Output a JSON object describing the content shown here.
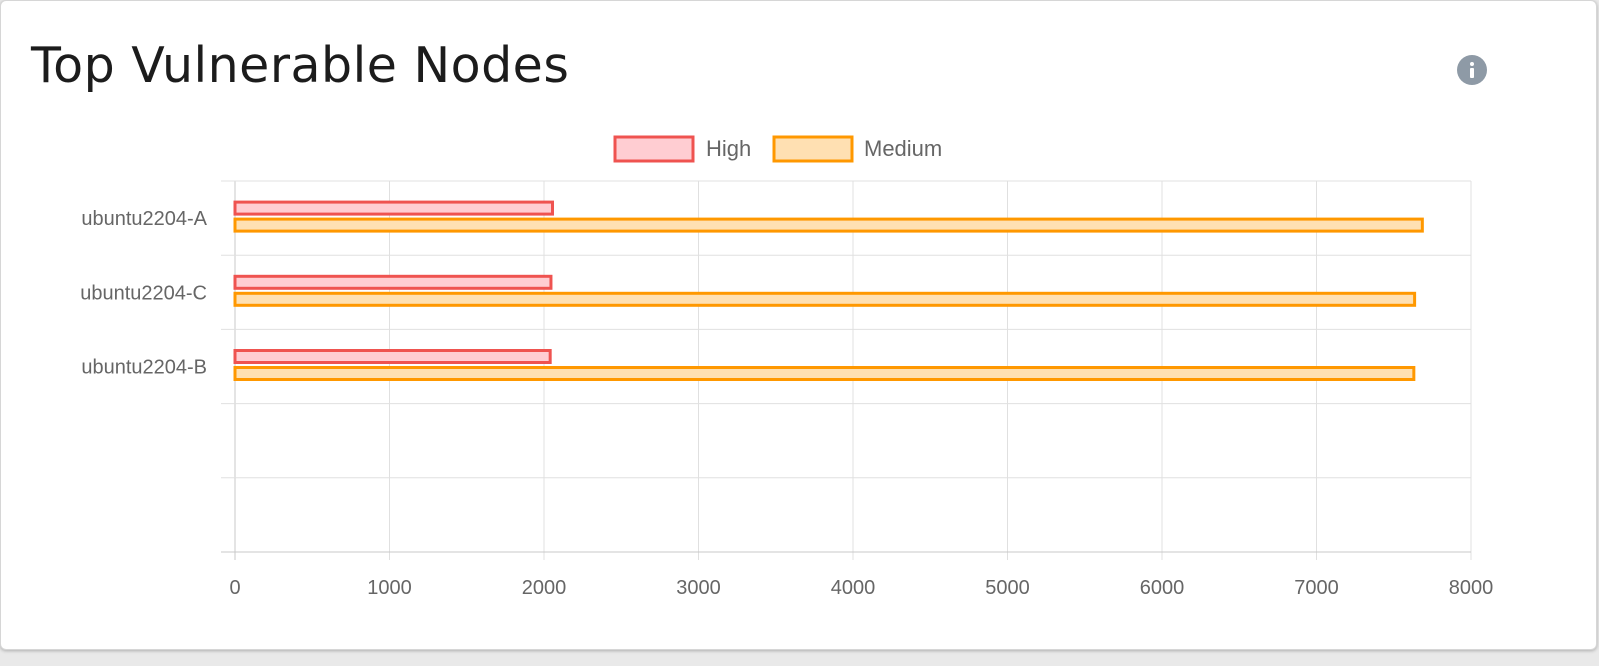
{
  "card": {
    "title": "Top Vulnerable Nodes",
    "info_icon": "info-icon"
  },
  "chart_data": {
    "type": "bar",
    "orientation": "horizontal",
    "categories": [
      "ubuntu2204-A",
      "ubuntu2204-C",
      "ubuntu2204-B"
    ],
    "empty_slots": 2,
    "series": [
      {
        "name": "High",
        "values": [
          2055,
          2045,
          2040
        ],
        "fill": "#ffcdd2",
        "border": "#ef5350"
      },
      {
        "name": "Medium",
        "values": [
          7685,
          7635,
          7630
        ],
        "fill": "#ffe0b2",
        "border": "#ff9800"
      }
    ],
    "xlim": [
      0,
      8000
    ],
    "xticks": [
      "0",
      "1000",
      "2000",
      "3000",
      "4000",
      "5000",
      "6000",
      "7000",
      "8000"
    ],
    "legend": "top-center",
    "grid": true,
    "colors": {
      "grid": "#e0e0e0",
      "axis": "#c8c8c8",
      "text": "#666666"
    }
  }
}
